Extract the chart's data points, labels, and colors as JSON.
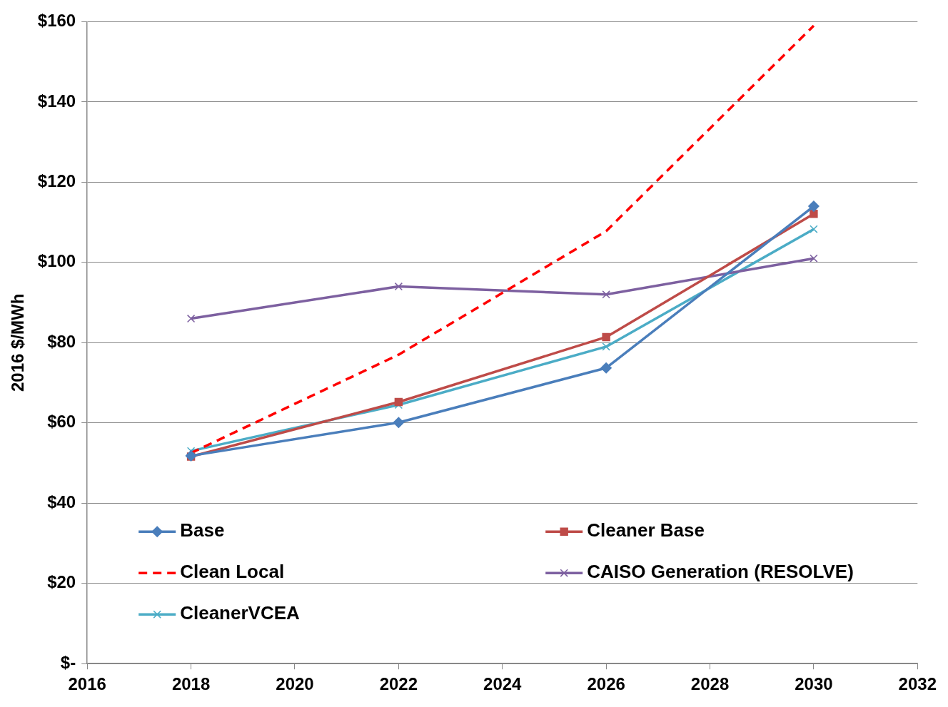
{
  "chart_data": {
    "type": "line",
    "ylabel": "2016 $/MWh",
    "xlim": [
      2016,
      2032
    ],
    "xticks": [
      2016,
      2018,
      2020,
      2022,
      2024,
      2026,
      2028,
      2030,
      2032
    ],
    "ylim": [
      0,
      160
    ],
    "yticks": [
      {
        "value": 0,
        "label": "$-"
      },
      {
        "value": 20,
        "label": "$20"
      },
      {
        "value": 40,
        "label": "$40"
      },
      {
        "value": 60,
        "label": "$60"
      },
      {
        "value": 80,
        "label": "$80"
      },
      {
        "value": 100,
        "label": "$100"
      },
      {
        "value": 120,
        "label": "$120"
      },
      {
        "value": 140,
        "label": "$140"
      },
      {
        "value": 160,
        "label": "$160"
      }
    ],
    "grid": "y",
    "legend": "bottom left",
    "x": [
      2018,
      2022,
      2026,
      2030
    ],
    "series": [
      {
        "name": "Base",
        "color": "#4a7ebb",
        "marker": "diamond",
        "line_style": "solid",
        "values": [
          51.8,
          60.1,
          73.7,
          114
        ]
      },
      {
        "name": "Cleaner Base",
        "color": "#be4b48",
        "marker": "square",
        "line_style": "solid",
        "values": [
          51.6,
          65.2,
          81.4,
          112.1
        ]
      },
      {
        "name": "Clean Local",
        "color": "#ff0000",
        "marker": "none",
        "line_style": "dashed",
        "values": [
          52.5,
          77,
          107.8,
          159
        ]
      },
      {
        "name": "CAISO Generation (RESOLVE)",
        "color": "#7d60a0",
        "marker": "cross",
        "line_style": "solid",
        "values": [
          86,
          94,
          92,
          101
        ]
      },
      {
        "name": "CleanerVCEA",
        "color": "#4bacc6",
        "marker": "cross",
        "line_style": "solid",
        "values": [
          53,
          64.5,
          79,
          108.3
        ]
      }
    ]
  }
}
